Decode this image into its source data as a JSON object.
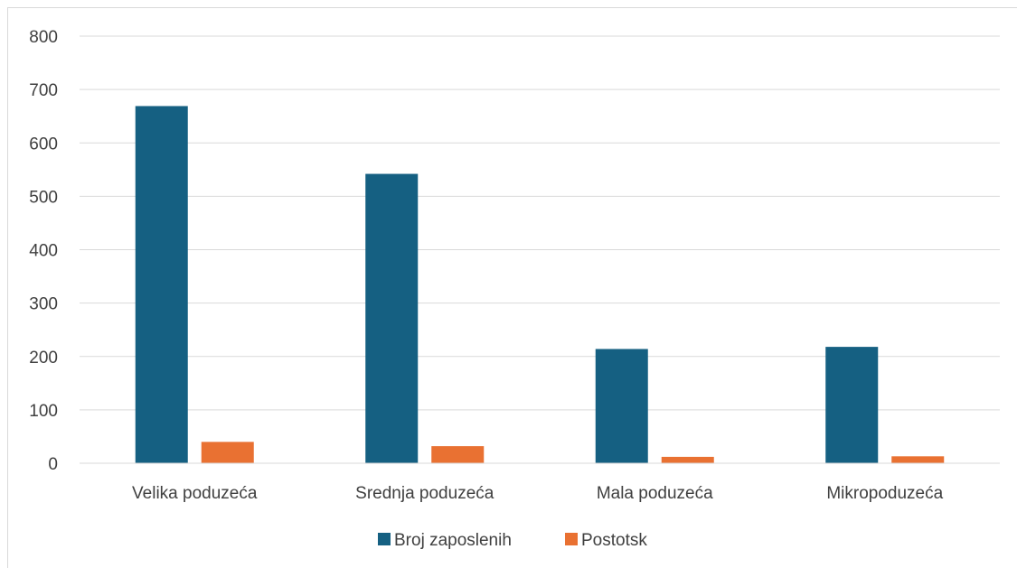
{
  "chart_data": {
    "type": "bar",
    "title": "",
    "xlabel": "",
    "ylabel": "",
    "categories": [
      "Velika poduzeća",
      "Srednja poduzeća",
      "Mala poduzeća",
      "Mikropoduzeća"
    ],
    "series": [
      {
        "name": "Broj zaposlenih",
        "color": "#156082",
        "values": [
          669,
          542,
          214,
          218
        ]
      },
      {
        "name": "Postotsk",
        "color": "#e97132",
        "values": [
          40,
          32,
          12,
          13
        ]
      }
    ],
    "ylim": [
      0,
      800
    ],
    "yticks": [
      0,
      100,
      200,
      300,
      400,
      500,
      600,
      700,
      800
    ],
    "grid": true,
    "legend": "bottom"
  }
}
